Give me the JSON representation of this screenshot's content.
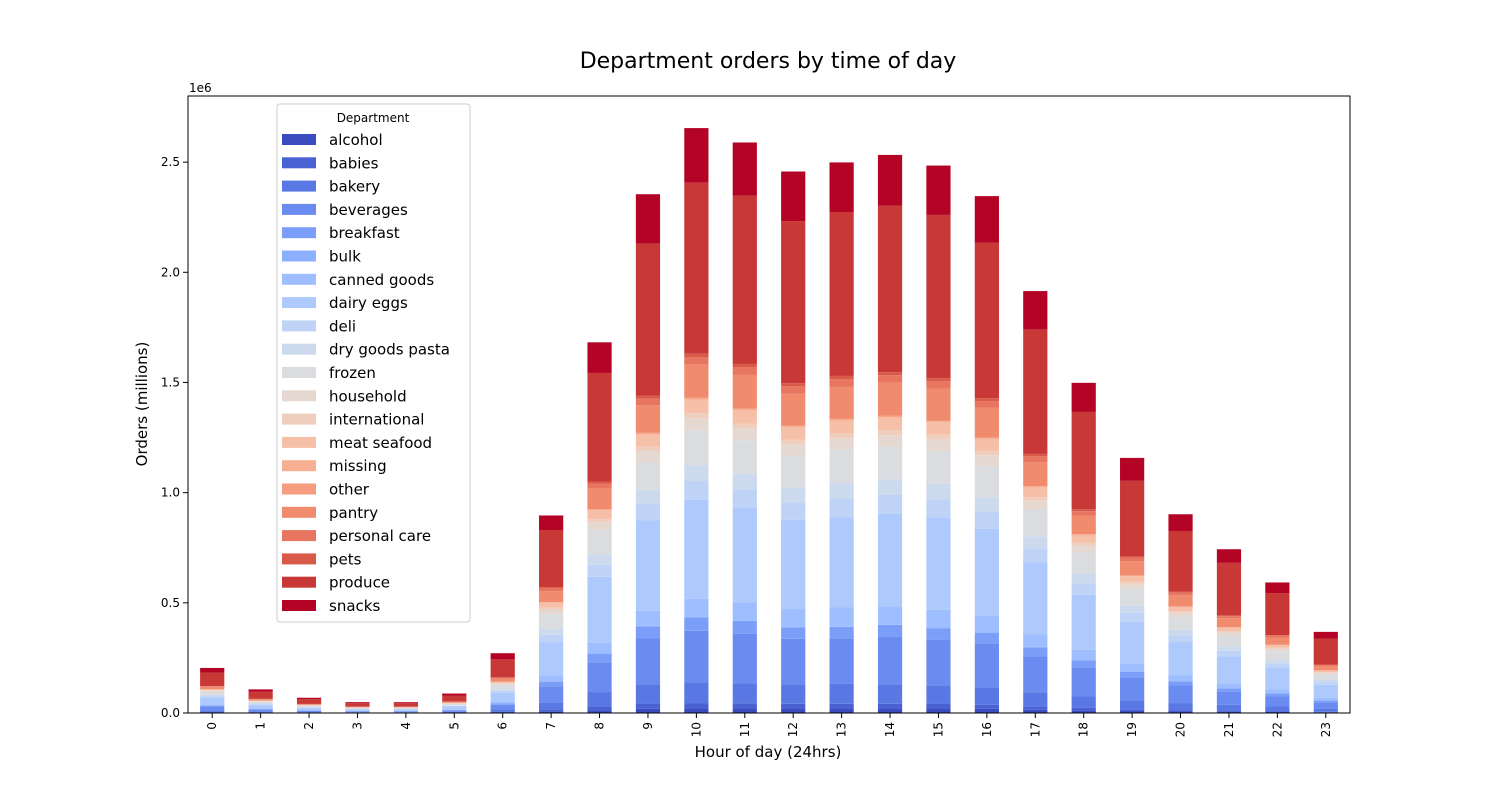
{
  "chart_data": {
    "type": "bar",
    "stacked": true,
    "title": "Department orders by time of day",
    "xlabel": "Hour of day (24hrs)",
    "ylabel": "Orders (millions)",
    "y_offset_label": "1e6",
    "ylim": [
      0,
      2800000
    ],
    "yticks": [
      0,
      500000,
      1000000,
      1500000,
      2000000,
      2500000
    ],
    "ytick_labels": [
      "0.0",
      "0.5",
      "1.0",
      "1.5",
      "2.0",
      "2.5"
    ],
    "grid": false,
    "legend": {
      "title": "Department",
      "placement": "upper-left"
    },
    "categories": [
      "0",
      "1",
      "2",
      "3",
      "4",
      "5",
      "6",
      "7",
      "8",
      "9",
      "10",
      "11",
      "12",
      "13",
      "14",
      "15",
      "16",
      "17",
      "18",
      "19",
      "20",
      "21",
      "22",
      "23"
    ],
    "series": [
      {
        "name": "alcohol",
        "color": "#3b4cc0",
        "values": [
          1600,
          800,
          500,
          300,
          300,
          500,
          1700,
          6200,
          13000,
          19000,
          22000,
          22000,
          21000,
          21000,
          21000,
          21000,
          19000,
          15000,
          12000,
          9000,
          7000,
          6000,
          4600,
          3000
        ]
      },
      {
        "name": "babies",
        "color": "#4961d2",
        "values": [
          3000,
          1600,
          1100,
          800,
          800,
          1500,
          4500,
          10500,
          17000,
          22000,
          23000,
          22000,
          21000,
          21000,
          21000,
          20000,
          18000,
          14000,
          11000,
          8000,
          6000,
          5000,
          4000,
          2500
        ]
      },
      {
        "name": "bakery",
        "color": "#5a78e4",
        "values": [
          7500,
          4000,
          2500,
          1800,
          1900,
          3200,
          10000,
          32000,
          65000,
          90000,
          95000,
          90000,
          88000,
          90000,
          88000,
          85000,
          80000,
          65000,
          52000,
          40000,
          32000,
          26000,
          21000,
          13000
        ]
      },
      {
        "name": "beverages",
        "color": "#6a8bef",
        "values": [
          17000,
          9000,
          5800,
          4200,
          4000,
          7000,
          21000,
          73000,
          135000,
          207000,
          233000,
          226000,
          207000,
          207000,
          215000,
          207000,
          198000,
          164000,
          132000,
          105000,
          80000,
          60000,
          47000,
          30000
        ]
      },
      {
        "name": "breakfast",
        "color": "#7b9ff9",
        "values": [
          4500,
          2500,
          1500,
          1100,
          1100,
          2000,
          6000,
          21000,
          38000,
          55000,
          60000,
          58000,
          52000,
          52000,
          55000,
          52000,
          48000,
          40000,
          32000,
          25000,
          19000,
          15000,
          12000,
          8000
        ]
      },
      {
        "name": "bulk",
        "color": "#8db0fe",
        "values": [
          200,
          100,
          80,
          60,
          60,
          100,
          300,
          1000,
          2000,
          2800,
          3000,
          3000,
          2800,
          2800,
          2800,
          2700,
          2500,
          2100,
          1700,
          1300,
          1000,
          800,
          600,
          400
        ]
      },
      {
        "name": "canned goods",
        "color": "#9ebeff",
        "values": [
          6000,
          3000,
          2000,
          1400,
          1400,
          2500,
          8000,
          28000,
          48000,
          68000,
          82000,
          81000,
          80000,
          85000,
          82000,
          80000,
          75000,
          58000,
          46000,
          36000,
          27000,
          22000,
          18000,
          11000
        ]
      },
      {
        "name": "dairy eggs",
        "color": "#aec9fc",
        "values": [
          30000,
          16000,
          10000,
          7000,
          7000,
          13000,
          40000,
          150000,
          300000,
          410000,
          450000,
          430000,
          405000,
          410000,
          420000,
          420000,
          395000,
          325000,
          250000,
          190000,
          150000,
          123000,
          97000,
          60000
        ]
      },
      {
        "name": "deli",
        "color": "#bfd3f6",
        "values": [
          7000,
          3500,
          2300,
          1600,
          1600,
          3000,
          9000,
          33000,
          55000,
          75000,
          85000,
          84000,
          80000,
          85000,
          85000,
          83000,
          78000,
          65000,
          52000,
          40000,
          30000,
          25000,
          20000,
          12000
        ]
      },
      {
        "name": "dry goods pasta",
        "color": "#cdd9ec",
        "values": [
          5500,
          2800,
          1800,
          1300,
          1300,
          2400,
          7500,
          27000,
          46000,
          64000,
          72000,
          70000,
          66000,
          70000,
          70000,
          70000,
          65000,
          54000,
          42000,
          32000,
          25000,
          20000,
          16000,
          10000
        ]
      },
      {
        "name": "frozen",
        "color": "#dadce0",
        "values": [
          14000,
          7500,
          5000,
          3500,
          3500,
          6000,
          19000,
          66000,
          111000,
          126000,
          158000,
          152000,
          146000,
          151000,
          148000,
          148000,
          142000,
          121000,
          98000,
          77000,
          60000,
          49000,
          40000,
          25000
        ]
      },
      {
        "name": "household",
        "color": "#e5d8d1",
        "values": [
          4600,
          2400,
          1600,
          1100,
          1100,
          2000,
          6000,
          22000,
          36000,
          50000,
          55000,
          54000,
          51000,
          52000,
          53000,
          52000,
          49000,
          40000,
          31000,
          23000,
          18000,
          14000,
          11000,
          7000
        ]
      },
      {
        "name": "international",
        "color": "#efcebd",
        "values": [
          1700,
          900,
          600,
          400,
          400,
          800,
          2300,
          8000,
          14000,
          20000,
          23000,
          22000,
          21000,
          22000,
          22000,
          22000,
          20000,
          16000,
          13000,
          9000,
          7000,
          6000,
          4600,
          3000
        ]
      },
      {
        "name": "meat seafood",
        "color": "#f5c0a7",
        "values": [
          4500,
          2300,
          1500,
          1100,
          1100,
          2000,
          6000,
          22000,
          38000,
          54000,
          60000,
          58000,
          55000,
          57000,
          57000,
          56000,
          52000,
          43000,
          33000,
          25000,
          19000,
          15000,
          12000,
          7500
        ]
      },
      {
        "name": "missing",
        "color": "#f7af91",
        "values": [
          500,
          250,
          160,
          120,
          120,
          200,
          700,
          2300,
          4000,
          5500,
          6000,
          5800,
          5500,
          5600,
          5600,
          5500,
          5200,
          4300,
          3300,
          2500,
          1900,
          1500,
          1200,
          800
        ]
      },
      {
        "name": "other",
        "color": "#f59d7e",
        "values": [
          300,
          150,
          100,
          70,
          70,
          120,
          400,
          1300,
          2200,
          3100,
          3400,
          3300,
          3100,
          3200,
          3200,
          3100,
          2900,
          2400,
          1800,
          1400,
          1100,
          900,
          700,
          450
        ]
      },
      {
        "name": "pantry",
        "color": "#f08b6e",
        "values": [
          11000,
          5500,
          3500,
          2500,
          2500,
          4500,
          14000,
          50000,
          95000,
          125000,
          150000,
          155000,
          145000,
          147000,
          150000,
          145000,
          135000,
          110000,
          85000,
          65000,
          50000,
          41000,
          33000,
          20000
        ]
      },
      {
        "name": "personal care",
        "color": "#e7755f",
        "values": [
          2500,
          1300,
          800,
          600,
          600,
          1100,
          3500,
          12000,
          22000,
          30000,
          35000,
          34000,
          33000,
          34000,
          34000,
          33000,
          31000,
          26000,
          20000,
          15000,
          12000,
          9000,
          7500,
          4500
        ]
      },
      {
        "name": "pets",
        "color": "#da5a49",
        "values": [
          1100,
          550,
          350,
          250,
          250,
          450,
          1500,
          5200,
          9000,
          13000,
          15000,
          14000,
          14000,
          14000,
          14000,
          14000,
          13000,
          11000,
          8500,
          6500,
          5000,
          4000,
          3200,
          2000
        ]
      },
      {
        "name": "produce",
        "color": "#c83836",
        "values": [
          61000,
          32000,
          21000,
          15000,
          15000,
          27000,
          82000,
          260000,
          493000,
          690000,
          776000,
          764000,
          736000,
          744000,
          755000,
          741000,
          705000,
          565000,
          442000,
          343000,
          275000,
          238000,
          191000,
          118000
        ]
      },
      {
        "name": "snacks",
        "color": "#b40426",
        "values": [
          21000,
          11000,
          7000,
          5000,
          5000,
          9000,
          28000,
          66000,
          139000,
          225000,
          248000,
          241000,
          225000,
          225000,
          231000,
          224000,
          212000,
          174000,
          132000,
          104000,
          76000,
          62000,
          48000,
          30000
        ]
      }
    ]
  }
}
